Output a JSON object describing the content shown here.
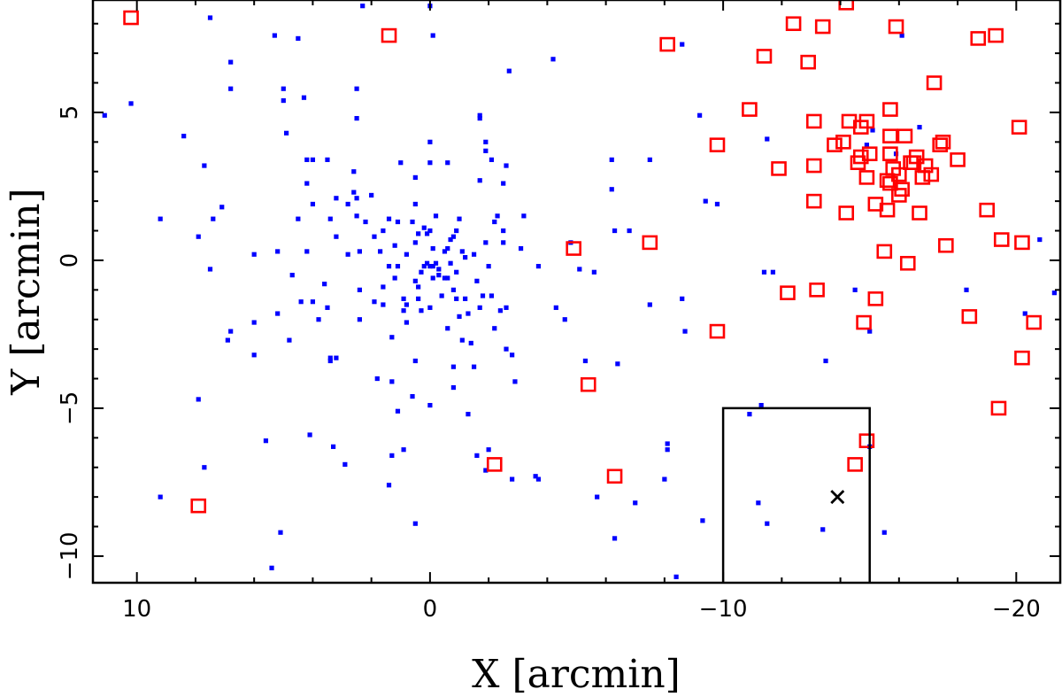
{
  "chart_data": {
    "type": "scatter",
    "title": "",
    "xlabel": "X [arcmin]",
    "ylabel": "Y [arcmin]",
    "xlim": [
      11.5,
      -21.5
    ],
    "ylim": [
      -10.9,
      8.8
    ],
    "xticks": [
      10,
      0,
      -10,
      -20
    ],
    "yticks": [
      5,
      0,
      -5,
      -10
    ],
    "grid": false,
    "colors": {
      "blue": "#0000ff",
      "red": "#ff0000",
      "box": "#000000",
      "cross": "#000000"
    },
    "series": [
      {
        "marker": "small-filled-square",
        "color": "#0000ff",
        "points": [
          [
            11.1,
            4.9
          ],
          [
            10.2,
            5.3
          ],
          [
            9.2,
            1.4
          ],
          [
            9.2,
            -8.0
          ],
          [
            8.4,
            4.2
          ],
          [
            7.9,
            0.8
          ],
          [
            7.9,
            -4.7
          ],
          [
            7.7,
            -7.0
          ],
          [
            7.7,
            3.2
          ],
          [
            7.5,
            -0.3
          ],
          [
            7.5,
            8.2
          ],
          [
            7.4,
            1.4
          ],
          [
            7.1,
            1.8
          ],
          [
            6.9,
            -2.7
          ],
          [
            6.8,
            -2.4
          ],
          [
            6.8,
            6.7
          ],
          [
            6.8,
            5.8
          ],
          [
            6.0,
            0.2
          ],
          [
            6.0,
            -2.1
          ],
          [
            6.0,
            -3.2
          ],
          [
            5.6,
            -6.1
          ],
          [
            5.4,
            -10.4
          ],
          [
            5.3,
            7.6
          ],
          [
            5.2,
            0.3
          ],
          [
            5.2,
            -1.8
          ],
          [
            5.1,
            -9.2
          ],
          [
            5.0,
            5.8
          ],
          [
            5.0,
            5.4
          ],
          [
            4.9,
            4.3
          ],
          [
            4.8,
            -2.7
          ],
          [
            4.7,
            -0.5
          ],
          [
            4.5,
            1.4
          ],
          [
            4.5,
            7.5
          ],
          [
            4.4,
            -1.4
          ],
          [
            4.3,
            5.5
          ],
          [
            4.2,
            3.4
          ],
          [
            4.2,
            0.3
          ],
          [
            4.2,
            2.6
          ],
          [
            4.1,
            -5.9
          ],
          [
            4.0,
            3.4
          ],
          [
            4.0,
            -1.4
          ],
          [
            4.0,
            1.9
          ],
          [
            3.8,
            -2.0
          ],
          [
            3.6,
            -0.8
          ],
          [
            3.5,
            -1.6
          ],
          [
            3.5,
            3.4
          ],
          [
            3.4,
            -3.4
          ],
          [
            3.4,
            -3.3
          ],
          [
            3.4,
            1.4
          ],
          [
            3.3,
            -6.3
          ],
          [
            3.2,
            -3.3
          ],
          [
            3.2,
            2.1
          ],
          [
            3.2,
            0.8
          ],
          [
            2.9,
            -6.9
          ],
          [
            2.8,
            0.2
          ],
          [
            2.8,
            1.9
          ],
          [
            2.6,
            3.0
          ],
          [
            2.6,
            2.3
          ],
          [
            2.5,
            2.1
          ],
          [
            2.5,
            1.5
          ],
          [
            2.5,
            5.8
          ],
          [
            2.5,
            4.8
          ],
          [
            2.4,
            0.3
          ],
          [
            2.4,
            -1.0
          ],
          [
            2.4,
            -2.0
          ],
          [
            2.3,
            8.6
          ],
          [
            2.2,
            1.3
          ],
          [
            2.0,
            2.2
          ],
          [
            1.9,
            0.8
          ],
          [
            1.9,
            -1.4
          ],
          [
            1.8,
            -4.0
          ],
          [
            1.7,
            0.3
          ],
          [
            1.6,
            1.0
          ],
          [
            1.6,
            -0.9
          ],
          [
            1.6,
            -1.5
          ],
          [
            1.4,
            -0.2
          ],
          [
            1.4,
            1.4
          ],
          [
            1.4,
            -7.6
          ],
          [
            1.3,
            -6.6
          ],
          [
            1.3,
            -2.6
          ],
          [
            1.3,
            -4.1
          ],
          [
            1.2,
            0.5
          ],
          [
            1.2,
            -0.6
          ],
          [
            1.1,
            -5.1
          ],
          [
            1.1,
            -0.2
          ],
          [
            1.1,
            1.3
          ],
          [
            1.0,
            3.3
          ],
          [
            0.9,
            -1.3
          ],
          [
            0.9,
            -1.7
          ],
          [
            0.9,
            -6.4
          ],
          [
            0.8,
            -1.5
          ],
          [
            0.8,
            -2.1
          ],
          [
            0.8,
            0.2
          ],
          [
            0.6,
            -4.6
          ],
          [
            0.6,
            1.3
          ],
          [
            0.5,
            1.9
          ],
          [
            0.5,
            -0.7
          ],
          [
            0.5,
            -3.4
          ],
          [
            0.5,
            0.6
          ],
          [
            0.5,
            2.8
          ],
          [
            0.5,
            -8.9
          ],
          [
            0.4,
            -1.3
          ],
          [
            0.4,
            -0.9
          ],
          [
            0.4,
            0.9
          ],
          [
            0.3,
            -0.4
          ],
          [
            0.3,
            -1.7
          ],
          [
            0.2,
            -0.2
          ],
          [
            0.2,
            1.1
          ],
          [
            0.1,
            0.9
          ],
          [
            0.1,
            -0.1
          ],
          [
            0.0,
            -0.2
          ],
          [
            0.0,
            4.0
          ],
          [
            0.0,
            3.3
          ],
          [
            0.0,
            -4.9
          ],
          [
            0.0,
            1.0
          ],
          [
            0.0,
            8.6
          ],
          [
            0.0,
            -1.6
          ],
          [
            -0.1,
            -0.2
          ],
          [
            -0.1,
            -0.6
          ],
          [
            -0.1,
            7.6
          ],
          [
            -0.1,
            0.4
          ],
          [
            -0.2,
            -0.1
          ],
          [
            -0.2,
            1.5
          ],
          [
            -0.3,
            -0.3
          ],
          [
            -0.3,
            -0.5
          ],
          [
            -0.4,
            -1.2
          ],
          [
            -0.5,
            -0.6
          ],
          [
            -0.5,
            0.3
          ],
          [
            -0.6,
            -0.6
          ],
          [
            -0.6,
            0.4
          ],
          [
            -0.6,
            -2.3
          ],
          [
            -0.6,
            3.3
          ],
          [
            -0.7,
            0.7
          ],
          [
            -0.7,
            -0.1
          ],
          [
            -0.8,
            -1.0
          ],
          [
            -0.8,
            0.8
          ],
          [
            -0.8,
            -4.3
          ],
          [
            -0.8,
            -3.6
          ],
          [
            -0.9,
            1.0
          ],
          [
            -0.9,
            -0.4
          ],
          [
            -0.9,
            -1.3
          ],
          [
            -1.0,
            -1.9
          ],
          [
            -1.0,
            1.4
          ],
          [
            -1.1,
            -2.7
          ],
          [
            -1.1,
            0.3
          ],
          [
            -1.2,
            -1.3
          ],
          [
            -1.2,
            0.1
          ],
          [
            -1.3,
            -1.8
          ],
          [
            -1.3,
            -5.2
          ],
          [
            -1.4,
            -2.8
          ],
          [
            -1.5,
            -3.6
          ],
          [
            -1.5,
            0.2
          ],
          [
            -1.6,
            -0.7
          ],
          [
            -1.6,
            -6.6
          ],
          [
            -1.7,
            4.8
          ],
          [
            -1.7,
            4.9
          ],
          [
            -1.7,
            2.7
          ],
          [
            -1.7,
            -1.6
          ],
          [
            -1.8,
            -1.2
          ],
          [
            -1.9,
            0.6
          ],
          [
            -1.9,
            -7.1
          ],
          [
            -1.9,
            3.7
          ],
          [
            -1.9,
            4.0
          ],
          [
            -2.0,
            -6.4
          ],
          [
            -2.0,
            -0.2
          ],
          [
            -2.1,
            3.4
          ],
          [
            -2.1,
            -1.2
          ],
          [
            -2.2,
            1.3
          ],
          [
            -2.2,
            -2.3
          ],
          [
            -2.3,
            1.5
          ],
          [
            -2.4,
            -1.7
          ],
          [
            -2.5,
            1.0
          ],
          [
            -2.5,
            0.6
          ],
          [
            -2.5,
            2.6
          ],
          [
            -2.6,
            -3.0
          ],
          [
            -2.6,
            -1.6
          ],
          [
            -2.6,
            3.2
          ],
          [
            -2.7,
            6.4
          ],
          [
            -2.8,
            -3.2
          ],
          [
            -2.8,
            -7.4
          ],
          [
            -2.9,
            -4.1
          ],
          [
            -3.1,
            0.4
          ],
          [
            -3.2,
            1.5
          ],
          [
            -3.6,
            -7.3
          ],
          [
            -3.7,
            -7.4
          ],
          [
            -3.7,
            -0.2
          ],
          [
            -4.2,
            6.8
          ],
          [
            -4.3,
            -1.6
          ],
          [
            -4.6,
            -2.0
          ],
          [
            -4.8,
            0.6
          ],
          [
            -5.1,
            -0.3
          ],
          [
            -5.3,
            -3.4
          ],
          [
            -5.6,
            -0.4
          ],
          [
            -5.7,
            -8.0
          ],
          [
            -6.2,
            3.4
          ],
          [
            -6.2,
            2.4
          ],
          [
            -6.3,
            1.0
          ],
          [
            -6.3,
            -9.4
          ],
          [
            -6.4,
            -3.5
          ],
          [
            -6.8,
            1.0
          ],
          [
            -7.0,
            -8.2
          ],
          [
            -7.5,
            3.4
          ],
          [
            -7.5,
            -1.5
          ],
          [
            -8.0,
            -7.4
          ],
          [
            -8.1,
            -6.2
          ],
          [
            -8.1,
            -6.4
          ],
          [
            -8.4,
            -10.7
          ],
          [
            -8.6,
            7.3
          ],
          [
            -8.6,
            -1.3
          ],
          [
            -8.7,
            -2.4
          ],
          [
            -9.3,
            -8.8
          ],
          [
            -9.2,
            4.9
          ],
          [
            -9.4,
            2.0
          ],
          [
            -9.8,
            1.9
          ],
          [
            -10.9,
            -5.2
          ],
          [
            -11.3,
            -4.9
          ],
          [
            -11.2,
            -8.2
          ],
          [
            -11.4,
            -0.4
          ],
          [
            -11.5,
            4.1
          ],
          [
            -11.5,
            -8.9
          ],
          [
            -11.7,
            -0.4
          ],
          [
            -13.4,
            -9.1
          ],
          [
            -13.5,
            -3.4
          ],
          [
            -14.5,
            -1.0
          ],
          [
            -14.9,
            3.9
          ],
          [
            -15.0,
            -6.3
          ],
          [
            -15.0,
            -2.4
          ],
          [
            -15.1,
            4.4
          ],
          [
            -15.5,
            -9.2
          ],
          [
            -15.9,
            3.6
          ],
          [
            -16.1,
            7.6
          ],
          [
            -16.7,
            4.5
          ],
          [
            -18.3,
            -1.0
          ],
          [
            -20.3,
            -1.8
          ],
          [
            -20.8,
            0.7
          ],
          [
            -21.3,
            -1.1
          ]
        ]
      },
      {
        "marker": "open-square",
        "color": "#ff0000",
        "points": [
          [
            10.2,
            8.2
          ],
          [
            7.9,
            -8.3
          ],
          [
            1.4,
            7.6
          ],
          [
            -2.2,
            -6.9
          ],
          [
            -4.9,
            0.4
          ],
          [
            -5.4,
            -4.2
          ],
          [
            -6.3,
            -7.3
          ],
          [
            -7.5,
            0.6
          ],
          [
            -8.1,
            7.3
          ],
          [
            -9.8,
            3.9
          ],
          [
            -9.8,
            -2.4
          ],
          [
            -10.9,
            5.1
          ],
          [
            -11.4,
            6.9
          ],
          [
            -11.9,
            3.1
          ],
          [
            -12.2,
            -1.1
          ],
          [
            -12.4,
            8.0
          ],
          [
            -12.9,
            6.7
          ],
          [
            -13.1,
            2.0
          ],
          [
            -13.1,
            4.7
          ],
          [
            -13.1,
            3.2
          ],
          [
            -13.2,
            -1.0
          ],
          [
            -13.4,
            7.9
          ],
          [
            -13.8,
            3.9
          ],
          [
            -14.1,
            4.0
          ],
          [
            -14.2,
            1.6
          ],
          [
            -14.2,
            8.7
          ],
          [
            -14.3,
            4.7
          ],
          [
            -14.5,
            -6.9
          ],
          [
            -14.6,
            3.3
          ],
          [
            -14.7,
            4.5
          ],
          [
            -14.7,
            3.5
          ],
          [
            -14.8,
            -2.1
          ],
          [
            -14.9,
            2.8
          ],
          [
            -14.9,
            4.7
          ],
          [
            -14.9,
            -6.1
          ],
          [
            -15.0,
            3.6
          ],
          [
            -15.2,
            1.9
          ],
          [
            -15.2,
            -1.3
          ],
          [
            -15.5,
            0.3
          ],
          [
            -15.6,
            1.7
          ],
          [
            -15.6,
            2.7
          ],
          [
            -15.7,
            5.1
          ],
          [
            -15.7,
            3.6
          ],
          [
            -15.7,
            4.2
          ],
          [
            -15.7,
            2.6
          ],
          [
            -15.8,
            3.1
          ],
          [
            -15.9,
            7.9
          ],
          [
            -16.0,
            2.9
          ],
          [
            -16.0,
            2.2
          ],
          [
            -16.1,
            2.4
          ],
          [
            -16.2,
            4.2
          ],
          [
            -16.3,
            -0.1
          ],
          [
            -16.4,
            3.3
          ],
          [
            -16.5,
            3.3
          ],
          [
            -16.6,
            3.5
          ],
          [
            -16.7,
            1.6
          ],
          [
            -16.8,
            2.8
          ],
          [
            -16.9,
            3.2
          ],
          [
            -17.1,
            2.9
          ],
          [
            -17.2,
            6.0
          ],
          [
            -17.4,
            3.9
          ],
          [
            -17.5,
            4.0
          ],
          [
            -17.6,
            0.5
          ],
          [
            -18.0,
            3.4
          ],
          [
            -18.4,
            -1.9
          ],
          [
            -18.7,
            7.5
          ],
          [
            -19.0,
            1.7
          ],
          [
            -19.3,
            7.6
          ],
          [
            -19.4,
            -5.0
          ],
          [
            -19.5,
            0.7
          ],
          [
            -20.1,
            4.5
          ],
          [
            -20.2,
            -3.3
          ],
          [
            -20.2,
            0.6
          ],
          [
            -20.6,
            -2.1
          ]
        ]
      }
    ],
    "annotations": {
      "box": {
        "x": [
          -10,
          -15
        ],
        "y": [
          -11.0,
          -5.0
        ]
      },
      "cross": {
        "x": -13.9,
        "y": -8.0,
        "label": "×"
      }
    }
  }
}
